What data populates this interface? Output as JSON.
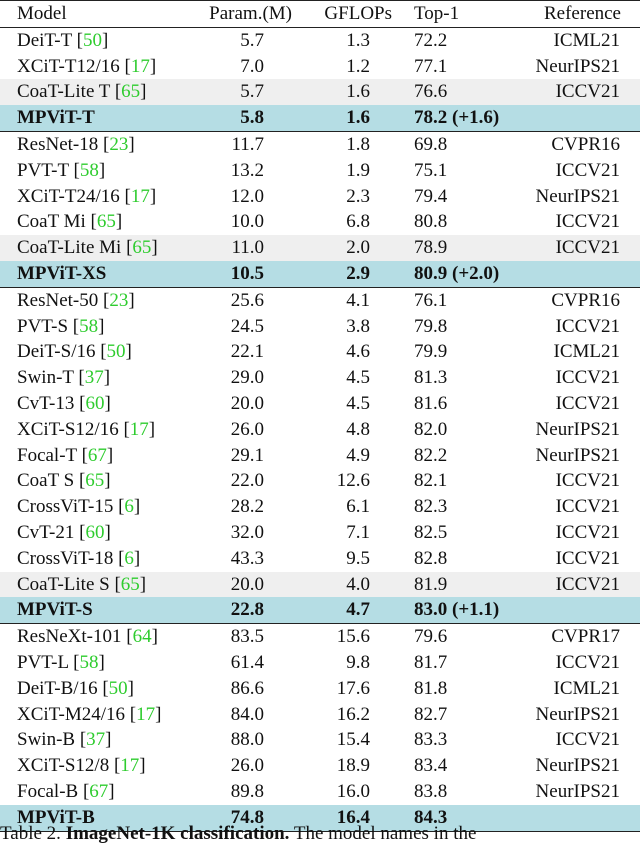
{
  "table": {
    "headers": {
      "model": "Model",
      "param": "Param.(M)",
      "gflops": "GFLOPs",
      "top1": "Top-1",
      "reference": "Reference"
    },
    "groups": [
      [
        {
          "model": "DeiT-T",
          "cite": "50",
          "param": "5.7",
          "gflops": "1.3",
          "top1": "72.2",
          "reference": "ICML21"
        },
        {
          "model": "XCiT-T12/16",
          "cite": "17",
          "param": "7.0",
          "gflops": "1.2",
          "top1": "77.1",
          "reference": "NeurIPS21"
        },
        {
          "model": "CoaT-Lite T",
          "cite": "65",
          "param": "5.7",
          "gflops": "1.6",
          "top1": "76.6",
          "reference": "ICCV21",
          "style": "gray"
        },
        {
          "model": "MPViT-T",
          "cite": "",
          "param": "5.8",
          "gflops": "1.6",
          "top1": "78.2 (+1.6)",
          "reference": "",
          "style": "hl"
        }
      ],
      [
        {
          "model": "ResNet-18",
          "cite": "23",
          "param": "11.7",
          "gflops": "1.8",
          "top1": "69.8",
          "reference": "CVPR16"
        },
        {
          "model": "PVT-T",
          "cite": "58",
          "param": "13.2",
          "gflops": "1.9",
          "top1": "75.1",
          "reference": "ICCV21"
        },
        {
          "model": "XCiT-T24/16",
          "cite": "17",
          "param": "12.0",
          "gflops": "2.3",
          "top1": "79.4",
          "reference": "NeurIPS21"
        },
        {
          "model": "CoaT Mi",
          "cite": "65",
          "param": "10.0",
          "gflops": "6.8",
          "top1": "80.8",
          "reference": "ICCV21"
        },
        {
          "model": "CoaT-Lite Mi",
          "cite": "65",
          "param": "11.0",
          "gflops": "2.0",
          "top1": "78.9",
          "reference": "ICCV21",
          "style": "gray"
        },
        {
          "model": "MPViT-XS",
          "cite": "",
          "param": "10.5",
          "gflops": "2.9",
          "top1": "80.9 (+2.0)",
          "reference": "",
          "style": "hl"
        }
      ],
      [
        {
          "model": "ResNet-50",
          "cite": "23",
          "param": "25.6",
          "gflops": "4.1",
          "top1": "76.1",
          "reference": "CVPR16"
        },
        {
          "model": "PVT-S",
          "cite": "58",
          "param": "24.5",
          "gflops": "3.8",
          "top1": "79.8",
          "reference": "ICCV21"
        },
        {
          "model": "DeiT-S/16",
          "cite": "50",
          "param": "22.1",
          "gflops": "4.6",
          "top1": "79.9",
          "reference": "ICML21"
        },
        {
          "model": "Swin-T",
          "cite": "37",
          "param": "29.0",
          "gflops": "4.5",
          "top1": "81.3",
          "reference": "ICCV21"
        },
        {
          "model": "CvT-13",
          "cite": "60",
          "param": "20.0",
          "gflops": "4.5",
          "top1": "81.6",
          "reference": "ICCV21"
        },
        {
          "model": "XCiT-S12/16",
          "cite": "17",
          "param": "26.0",
          "gflops": "4.8",
          "top1": "82.0",
          "reference": "NeurIPS21"
        },
        {
          "model": "Focal-T",
          "cite": "67",
          "param": "29.1",
          "gflops": "4.9",
          "top1": "82.2",
          "reference": "NeurIPS21"
        },
        {
          "model": "CoaT S",
          "cite": "65",
          "param": "22.0",
          "gflops": "12.6",
          "top1": "82.1",
          "reference": "ICCV21"
        },
        {
          "model": "CrossViT-15",
          "cite": "6",
          "param": "28.2",
          "gflops": "6.1",
          "top1": "82.3",
          "reference": "ICCV21"
        },
        {
          "model": "CvT-21",
          "cite": "60",
          "param": "32.0",
          "gflops": "7.1",
          "top1": "82.5",
          "reference": "ICCV21"
        },
        {
          "model": "CrossViT-18",
          "cite": "6",
          "param": "43.3",
          "gflops": "9.5",
          "top1": "82.8",
          "reference": "ICCV21"
        },
        {
          "model": "CoaT-Lite S",
          "cite": "65",
          "param": "20.0",
          "gflops": "4.0",
          "top1": "81.9",
          "reference": "ICCV21",
          "style": "gray"
        },
        {
          "model": "MPViT-S",
          "cite": "",
          "param": "22.8",
          "gflops": "4.7",
          "top1": "83.0 (+1.1)",
          "reference": "",
          "style": "hl"
        }
      ],
      [
        {
          "model": "ResNeXt-101",
          "cite": "64",
          "param": "83.5",
          "gflops": "15.6",
          "top1": "79.6",
          "reference": "CVPR17"
        },
        {
          "model": "PVT-L",
          "cite": "58",
          "param": "61.4",
          "gflops": "9.8",
          "top1": "81.7",
          "reference": "ICCV21"
        },
        {
          "model": "DeiT-B/16",
          "cite": "50",
          "param": "86.6",
          "gflops": "17.6",
          "top1": "81.8",
          "reference": "ICML21"
        },
        {
          "model": "XCiT-M24/16",
          "cite": "17",
          "param": "84.0",
          "gflops": "16.2",
          "top1": "82.7",
          "reference": "NeurIPS21"
        },
        {
          "model": "Swin-B",
          "cite": "37",
          "param": "88.0",
          "gflops": "15.4",
          "top1": "83.3",
          "reference": "ICCV21"
        },
        {
          "model": "XCiT-S12/8",
          "cite": "17",
          "param": "26.0",
          "gflops": "18.9",
          "top1": "83.4",
          "reference": "NeurIPS21"
        },
        {
          "model": "Focal-B",
          "cite": "67",
          "param": "89.8",
          "gflops": "16.0",
          "top1": "83.8",
          "reference": "NeurIPS21"
        },
        {
          "model": "MPViT-B",
          "cite": "",
          "param": "74.8",
          "gflops": "16.4",
          "top1": "84.3",
          "reference": "",
          "style": "hl"
        }
      ]
    ]
  },
  "caption": {
    "prefix": "Table 2.",
    "bold": "ImageNet-1K classification.",
    "text": "The model names in the"
  },
  "colors": {
    "highlight": "#b5dde4",
    "gray_row": "#efefef",
    "citation": "#2ecc2e"
  }
}
